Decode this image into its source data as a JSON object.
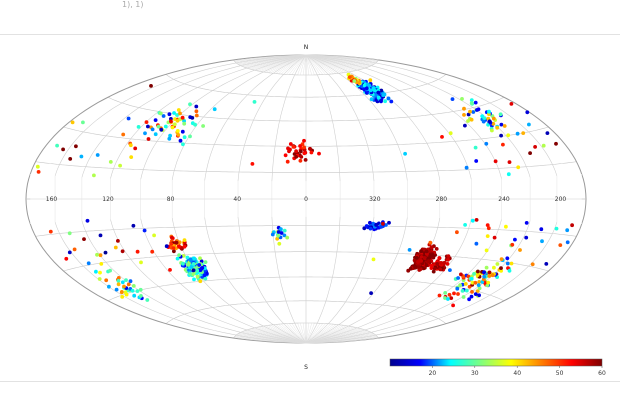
{
  "header": {
    "fragment": "1), 1)"
  },
  "footer": {
    "fragment": ""
  },
  "chart_data": {
    "type": "scatter",
    "projection": "hammer-aitoff",
    "coordinate_system": "galactic",
    "labels": {
      "north": "N",
      "south": "S"
    },
    "longitude_ticks": [
      {
        "lon": 160,
        "label": "160"
      },
      {
        "lon": 120,
        "label": "120"
      },
      {
        "lon": 80,
        "label": "80"
      },
      {
        "lon": 40,
        "label": "40"
      },
      {
        "lon": 0,
        "label": "0"
      },
      {
        "lon": 320,
        "label": "320"
      },
      {
        "lon": 280,
        "label": "280"
      },
      {
        "lon": 240,
        "label": "240"
      },
      {
        "lon": 200,
        "label": "200"
      }
    ],
    "colorbar": {
      "min": 10,
      "max": 60,
      "ticks": [
        {
          "v": 20,
          "label": "20"
        },
        {
          "v": 30,
          "label": "30"
        },
        {
          "v": 40,
          "label": "40"
        },
        {
          "v": 50,
          "label": "50"
        },
        {
          "v": 60,
          "label": "60"
        }
      ],
      "colors": [
        "#00008f",
        "#0000ff",
        "#00ffff",
        "#7fff7f",
        "#ffff00",
        "#ff7f00",
        "#ff0000",
        "#7f0000"
      ]
    },
    "masked_latitude_band": [
      -10,
      10
    ],
    "clusters": [
      {
        "lon": 288,
        "lat": 62,
        "dlon": 12,
        "dlat": 9,
        "n": 170,
        "vmin": 12,
        "vmax": 26
      },
      {
        "lon": 291,
        "lat": 70,
        "dlon": 8,
        "dlat": 5,
        "n": 30,
        "vmin": 26,
        "vmax": 55
      },
      {
        "lon": 4,
        "lat": 27,
        "dlon": 14,
        "dlat": 8,
        "n": 34,
        "vmin": 50,
        "vmax": 60
      },
      {
        "lon": 280,
        "lat": -32,
        "dlon": 9,
        "dlat": 9,
        "n": 250,
        "vmin": 55,
        "vmax": 62
      },
      {
        "lon": 266,
        "lat": -35,
        "dlon": 8,
        "dlat": 6,
        "n": 40,
        "vmin": 52,
        "vmax": 62
      },
      {
        "lon": 79,
        "lat": -37,
        "dlon": 12,
        "dlat": 8,
        "n": 150,
        "vmin": 15,
        "vmax": 35
      },
      {
        "lon": 82,
        "lat": -24,
        "dlon": 10,
        "dlat": 5,
        "n": 40,
        "vmin": 40,
        "vmax": 62
      },
      {
        "lon": 319,
        "lat": -15,
        "dlon": 10,
        "dlat": 3,
        "n": 30,
        "vmin": 12,
        "vmax": 22
      },
      {
        "lon": 16,
        "lat": -20,
        "dlon": 6,
        "dlat": 6,
        "n": 16,
        "vmin": 15,
        "vmax": 45
      },
      {
        "lon": 225,
        "lat": -40,
        "dlon": 25,
        "dlat": 18,
        "n": 90,
        "vmin": 15,
        "vmax": 62
      },
      {
        "lon": 220,
        "lat": 40,
        "dlon": 20,
        "dlat": 16,
        "n": 45,
        "vmin": 12,
        "vmax": 45
      },
      {
        "lon": 100,
        "lat": 40,
        "dlon": 30,
        "dlat": 14,
        "n": 55,
        "vmin": 12,
        "vmax": 55
      },
      {
        "lon": 150,
        "lat": -40,
        "dlon": 20,
        "dlat": 15,
        "n": 40,
        "vmin": 15,
        "vmax": 50
      },
      {
        "lon": 180,
        "lat": 0,
        "dlon": 180,
        "dlat": 75,
        "n": 150,
        "vmin": 10,
        "vmax": 62
      }
    ]
  }
}
